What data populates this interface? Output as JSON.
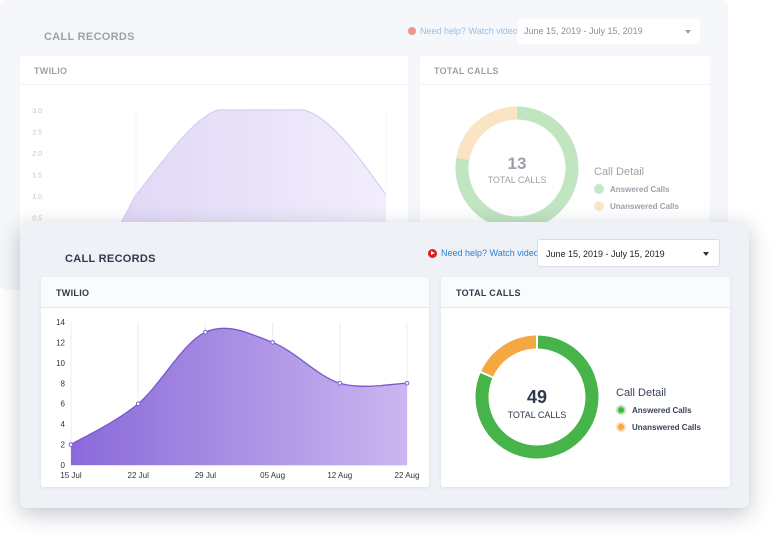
{
  "background": {
    "title": "CALL RECORDS",
    "help_link": "Need help? Watch video",
    "date_range": "June 15, 2019 - July 15, 2019",
    "twilio_card": {
      "title": "TWILIO"
    },
    "total_calls_card": {
      "title": "TOTAL CALLS",
      "total": "13",
      "total_label": "TOTAL CALLS"
    },
    "legend": {
      "title": "Call Detail",
      "answered": "Answered Calls",
      "unanswered": "Unanswered Calls"
    },
    "y_ticks": [
      "3.0",
      "2.5",
      "2.0",
      "1.5",
      "1.0",
      "0.5"
    ]
  },
  "foreground": {
    "title": "CALL RECORDS",
    "help_link": "Need help? Watch video",
    "date_range": "June 15, 2019 - July 15, 2019",
    "twilio_card": {
      "title": "TWILIO"
    },
    "total_calls_card": {
      "title": "TOTAL CALLS",
      "total": "49",
      "total_label": "TOTAL CALLS"
    },
    "legend": {
      "title": "Call Detail",
      "answered": "Answered Calls",
      "unanswered": "Unanswered Calls"
    }
  },
  "colors": {
    "area_start": "#8a6ad9",
    "area_end": "#cbb6f0",
    "answered": "#47b44a",
    "unanswered": "#f5a742"
  },
  "chart_data": [
    {
      "type": "area",
      "x": [
        "15 Jul",
        "22 Jul",
        "29 Jul",
        "05 Aug",
        "12 Aug",
        "22 Aug"
      ],
      "values": [
        2,
        6,
        13,
        12,
        8,
        8
      ],
      "ylim": [
        0,
        14
      ],
      "y_ticks": [
        0,
        2,
        4,
        6,
        8,
        10,
        12,
        14
      ]
    },
    {
      "type": "pie",
      "labels": [
        "Answered Calls",
        "Unanswered Calls"
      ],
      "values": [
        40,
        9
      ],
      "total": 49
    }
  ]
}
